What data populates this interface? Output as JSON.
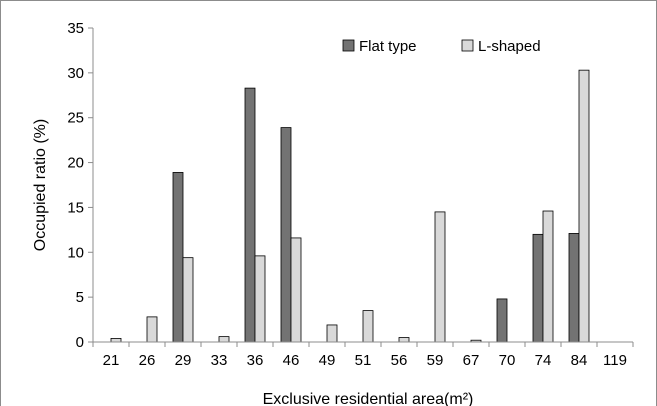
{
  "chart_data": {
    "type": "bar",
    "title": "",
    "xlabel": "Exclusive residential area(m²)",
    "ylabel": "Occupied ratio (%)",
    "ylim": [
      0,
      35
    ],
    "yticks": [
      0,
      5,
      10,
      15,
      20,
      25,
      30,
      35
    ],
    "grid": false,
    "legend_position": "top-right",
    "categories": [
      "21",
      "26",
      "29",
      "33",
      "36",
      "46",
      "49",
      "51",
      "56",
      "59",
      "67",
      "70",
      "74",
      "84",
      "119"
    ],
    "series": [
      {
        "name": "Flat type",
        "color": "#737373",
        "values": [
          0,
          0,
          18.9,
          0,
          28.3,
          23.9,
          0,
          0,
          0,
          0,
          0,
          4.8,
          12.0,
          12.1,
          0
        ]
      },
      {
        "name": "L-shaped",
        "color": "#d9d9d9",
        "values": [
          0.4,
          2.8,
          9.4,
          0.6,
          9.6,
          11.6,
          1.9,
          3.5,
          0.5,
          14.5,
          0.2,
          0,
          14.6,
          30.3,
          0
        ]
      }
    ]
  }
}
